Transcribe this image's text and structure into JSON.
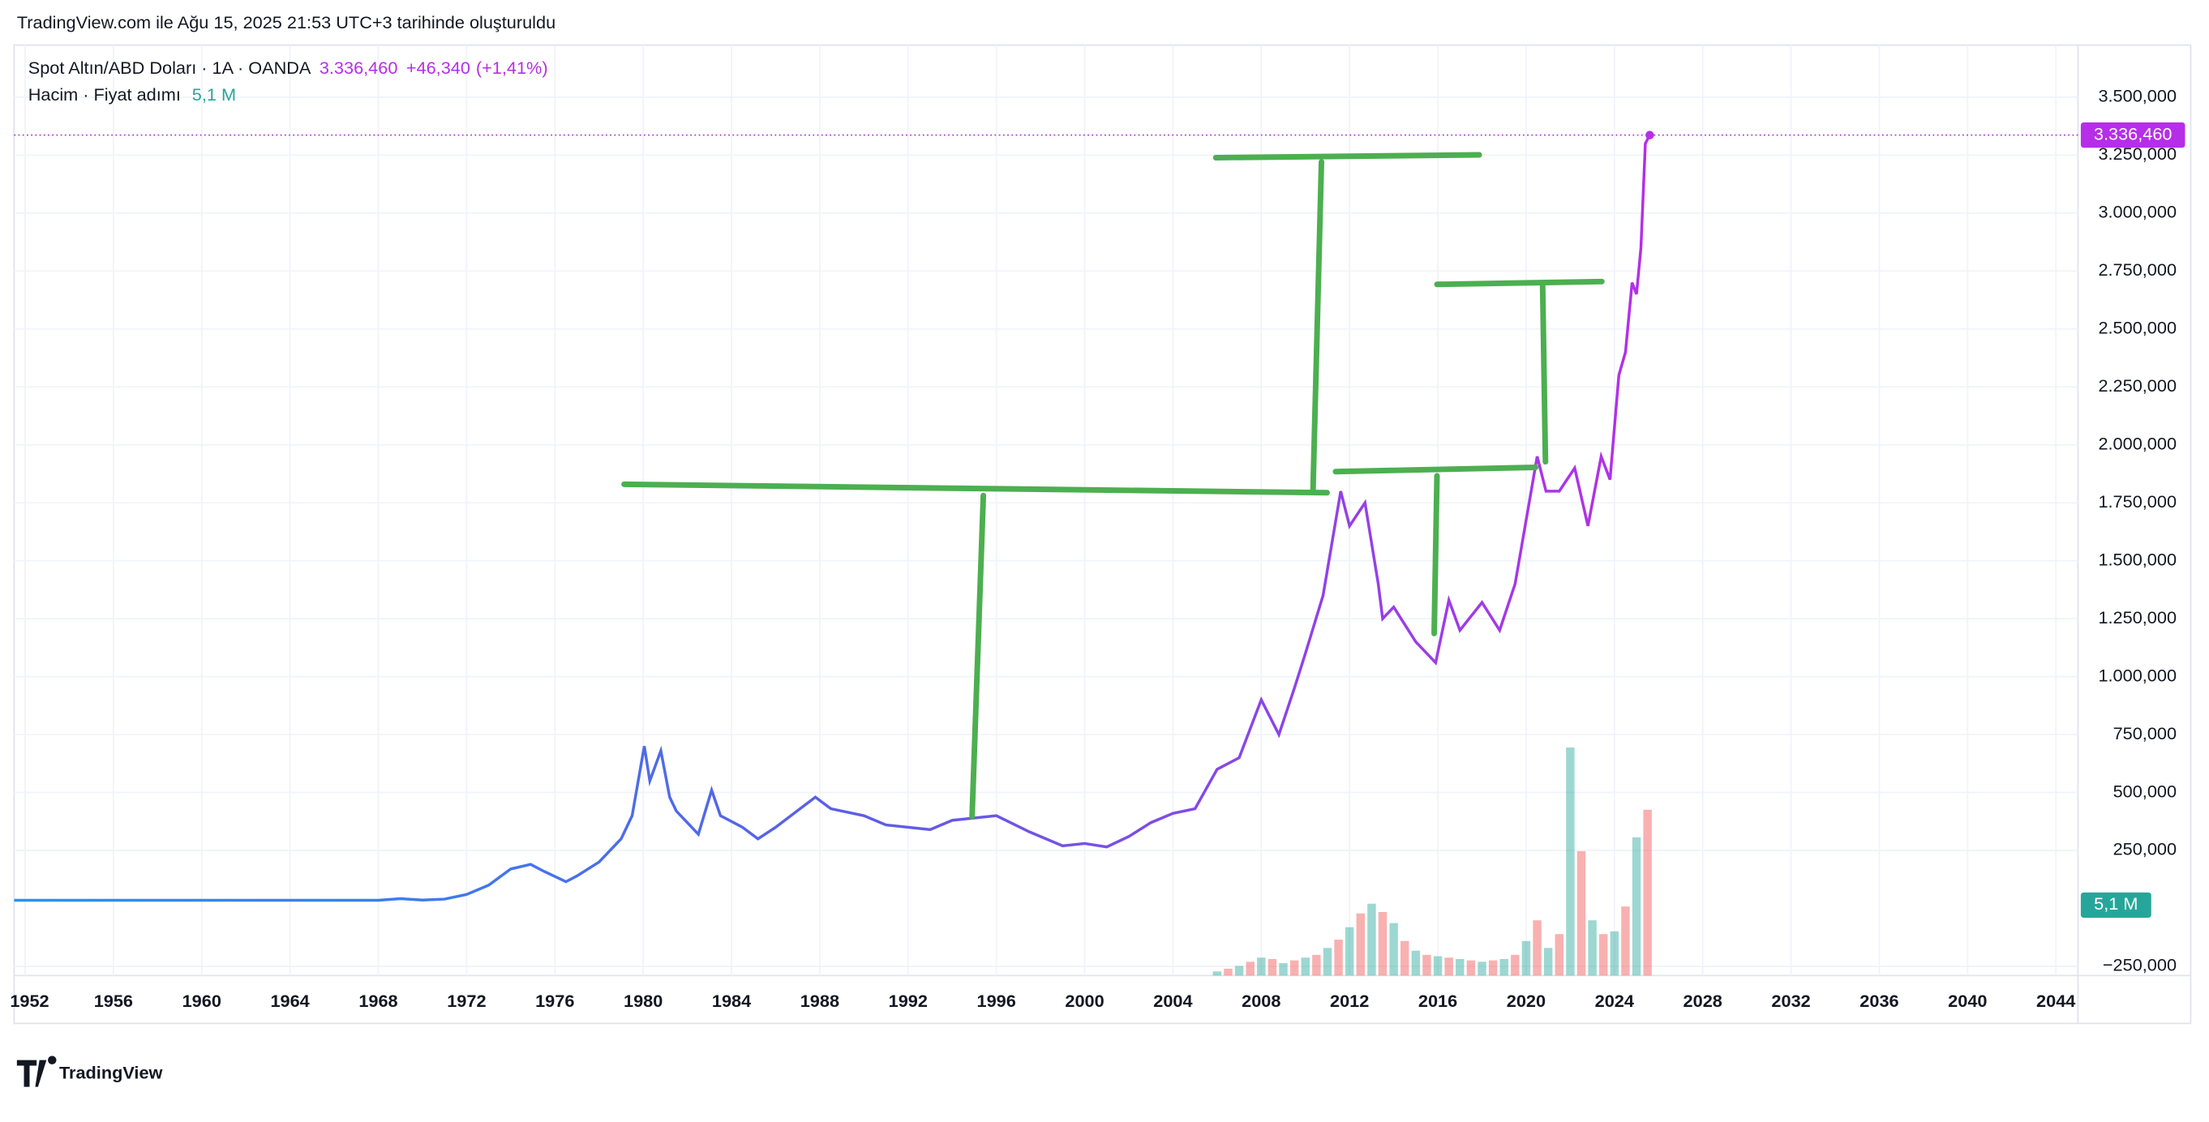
{
  "header": {
    "credit": "TradingView.com ile Ağu 15, 2025 21:53 UTC+3 tarihinde oluşturuldu"
  },
  "footer": {
    "logo": "TradingView"
  },
  "chart_data": {
    "type": "line",
    "title": "Spot Altın/ABD Doları · 1A · OANDA",
    "last": {
      "value": 3336.46,
      "label": "3.336,460"
    },
    "change": {
      "value": 46.34,
      "label": "+46,340"
    },
    "change_pct": {
      "value": 1.41,
      "label": "(+1,41%)"
    },
    "xlim": [
      1951.5,
      2045.0
    ],
    "xticks": [
      1952,
      1956,
      1960,
      1964,
      1968,
      1972,
      1976,
      1980,
      1984,
      1988,
      1992,
      1996,
      2000,
      2004,
      2008,
      2012,
      2016,
      2020,
      2024,
      2028,
      2032,
      2036,
      2040,
      2044
    ],
    "ylim": [
      -290,
      3725
    ],
    "yticks": [
      {
        "value": -250,
        "label": "−250,000"
      },
      {
        "value": 250,
        "label": "250,000"
      },
      {
        "value": 500,
        "label": "500,000"
      },
      {
        "value": 750,
        "label": "750,000"
      },
      {
        "value": 1000,
        "label": "1.000,000"
      },
      {
        "value": 1250,
        "label": "1.250,000"
      },
      {
        "value": 1500,
        "label": "1.500,000"
      },
      {
        "value": 1750,
        "label": "1.750,000"
      },
      {
        "value": 2000,
        "label": "2.000,000"
      },
      {
        "value": 2250,
        "label": "2.250,000"
      },
      {
        "value": 2500,
        "label": "2.500,000"
      },
      {
        "value": 2750,
        "label": "2.750,000"
      },
      {
        "value": 3000,
        "label": "3.000,000"
      },
      {
        "value": 3250,
        "label": "3.250,000"
      },
      {
        "value": 3500,
        "label": "3.500,000"
      }
    ],
    "grid": true,
    "series": [
      {
        "name": "Spot Altın/ABD Doları",
        "colors": [
          "#2196f3",
          "#5b5fe6",
          "#b62ee8"
        ],
        "x": [
          1951.5,
          1968,
          1969,
          1970,
          1971,
          1972,
          1973,
          1974,
          1974.9,
          1975.5,
          1976.5,
          1977,
          1978,
          1979,
          1979.5,
          1980.05,
          1980.3,
          1980.8,
          1981.2,
          1981.5,
          1982.5,
          1983.1,
          1983.5,
          1984.5,
          1985.2,
          1986,
          1987.8,
          1988.5,
          1990,
          1991,
          1993,
          1994,
          1996,
          1997.5,
          1999,
          2000,
          2001,
          2002,
          2003,
          2004,
          2005,
          2006,
          2007,
          2008,
          2008.8,
          2009.5,
          2010,
          2010.8,
          2011.6,
          2012,
          2012.7,
          2013.3,
          2013.5,
          2014,
          2015,
          2015.9,
          2016.5,
          2017,
          2018,
          2018.8,
          2019.5,
          2020.5,
          2020.9,
          2021.5,
          2022.2,
          2022.8,
          2023.4,
          2023.8,
          2024.2,
          2024.5,
          2024.8,
          2025.0,
          2025.2,
          2025.4,
          2025.6
        ],
        "values": [
          35,
          35,
          42,
          36,
          40,
          60,
          100,
          170,
          190,
          160,
          115,
          140,
          200,
          300,
          400,
          700,
          550,
          680,
          480,
          420,
          320,
          510,
          400,
          350,
          300,
          350,
          480,
          430,
          400,
          360,
          340,
          380,
          400,
          330,
          270,
          280,
          265,
          310,
          370,
          410,
          430,
          600,
          650,
          900,
          750,
          950,
          1100,
          1350,
          1800,
          1650,
          1750,
          1400,
          1250,
          1300,
          1150,
          1060,
          1330,
          1200,
          1320,
          1200,
          1400,
          1950,
          1800,
          1800,
          1900,
          1650,
          1950,
          1850,
          2300,
          2400,
          2700,
          2650,
          2850,
          3300,
          3336.46
        ]
      }
    ],
    "volume": {
      "name": "Hacim · Fiyat adımı",
      "last": {
        "value": 5100000,
        "label": "5,1 M"
      },
      "colors": [
        "#26a69a",
        "#ef5350"
      ],
      "ylim": [
        0,
        22000000
      ],
      "x": [
        2006,
        2006.5,
        2007,
        2007.5,
        2008,
        2008.5,
        2009,
        2009.5,
        2010,
        2010.5,
        2011,
        2011.5,
        2012,
        2012.5,
        2013,
        2013.5,
        2014,
        2014.5,
        2015,
        2015.5,
        2016,
        2016.5,
        2017,
        2017.5,
        2018,
        2018.5,
        2019,
        2019.5,
        2020,
        2020.5,
        2021,
        2021.5,
        2022,
        2022.5,
        2023,
        2023.5,
        2024,
        2024.5,
        2025,
        2025.5
      ],
      "values": [
        300000,
        500000,
        700000,
        1000000,
        1300000,
        1200000,
        900000,
        1100000,
        1300000,
        1500000,
        2000000,
        2600000,
        3500000,
        4500000,
        5200000,
        4600000,
        3800000,
        2500000,
        1800000,
        1500000,
        1400000,
        1300000,
        1200000,
        1100000,
        1000000,
        1100000,
        1200000,
        1500000,
        2500000,
        4000000,
        2000000,
        3000000,
        16500000,
        9000000,
        4000000,
        3000000,
        3200000,
        5000000,
        10000000,
        12000000
      ]
    }
  }
}
